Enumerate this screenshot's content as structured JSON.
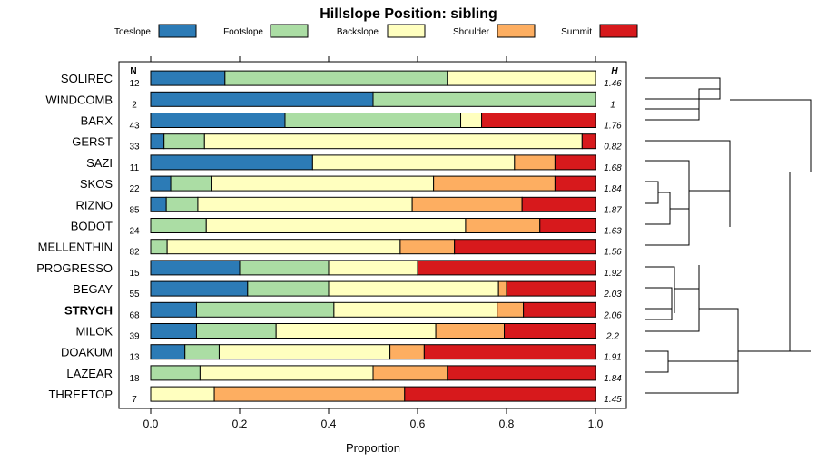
{
  "chart_data": {
    "type": "bar",
    "stacked": true,
    "orientation": "horizontal",
    "title": "Hillslope Position: sibling",
    "xlabel": "Proportion",
    "xlim": [
      0,
      1
    ],
    "xticks": [
      "0.0",
      "0.2",
      "0.4",
      "0.6",
      "0.8",
      "1.0"
    ],
    "n_header": "N",
    "h_header": "H",
    "highlight": "STRYCH",
    "legend": [
      {
        "name": "Toeslope",
        "color": "#2c7bb6"
      },
      {
        "name": "Footslope",
        "color": "#abdda4"
      },
      {
        "name": "Backslope",
        "color": "#ffffbf"
      },
      {
        "name": "Shoulder",
        "color": "#fdae61"
      },
      {
        "name": "Summit",
        "color": "#d7191c"
      }
    ],
    "categories": [
      "SOLIREC",
      "WINDCOMB",
      "BARX",
      "GERST",
      "SAZI",
      "SKOS",
      "RIZNO",
      "BODOT",
      "MELLENTHIN",
      "PROGRESSO",
      "BEGAY",
      "STRYCH",
      "MILOK",
      "DOAKUM",
      "LAZEAR",
      "THREETOP"
    ],
    "n": [
      "12",
      "2",
      "43",
      "33",
      "11",
      "22",
      "85",
      "24",
      "82",
      "15",
      "55",
      "68",
      "39",
      "13",
      "18",
      "7"
    ],
    "h": [
      "1.46",
      "1",
      "1.76",
      "0.82",
      "1.68",
      "1.84",
      "1.87",
      "1.63",
      "1.56",
      "1.92",
      "2.03",
      "2.06",
      "2.2",
      "1.91",
      "1.84",
      "1.45"
    ],
    "proportions": [
      [
        0.167,
        0.5,
        0.333,
        0,
        0
      ],
      [
        0.5,
        0.5,
        0,
        0,
        0
      ],
      [
        0.302,
        0.395,
        0.047,
        0,
        0.256
      ],
      [
        0.03,
        0.091,
        0.849,
        0,
        0.03
      ],
      [
        0.364,
        0,
        0.454,
        0.091,
        0.091
      ],
      [
        0.045,
        0.091,
        0.5,
        0.273,
        0.091
      ],
      [
        0.035,
        0.071,
        0.482,
        0.247,
        0.165
      ],
      [
        0,
        0.125,
        0.583,
        0.167,
        0.125
      ],
      [
        0,
        0.037,
        0.524,
        0.122,
        0.317
      ],
      [
        0.2,
        0.2,
        0.2,
        0,
        0.4
      ],
      [
        0.218,
        0.182,
        0.382,
        0.018,
        0.2
      ],
      [
        0.103,
        0.309,
        0.367,
        0.059,
        0.162
      ],
      [
        0.103,
        0.179,
        0.359,
        0.154,
        0.205
      ],
      [
        0.077,
        0.077,
        0.384,
        0.077,
        0.385
      ],
      [
        0,
        0.111,
        0.389,
        0.167,
        0.333
      ],
      [
        0,
        0,
        0.143,
        0.428,
        0.429
      ]
    ]
  }
}
